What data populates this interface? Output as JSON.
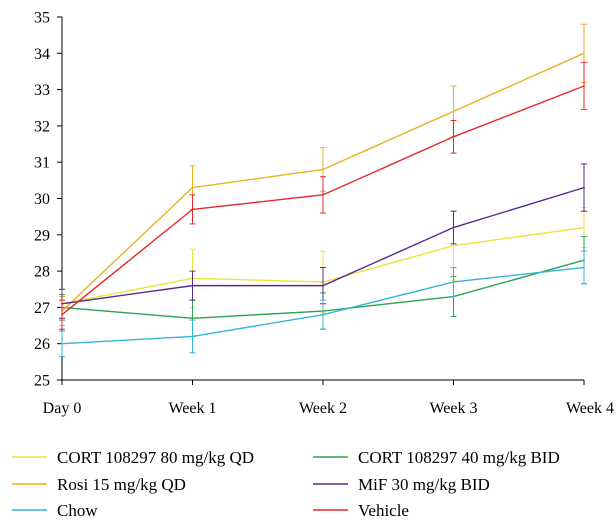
{
  "chart_data": {
    "type": "line",
    "title": "",
    "xlabel": "",
    "ylabel": "",
    "categories": [
      "Day 0",
      "Week 1",
      "Week 2",
      "Week 3",
      "Week 4"
    ],
    "ylim": [
      25,
      35
    ],
    "yticks": [
      25,
      26,
      27,
      28,
      29,
      30,
      31,
      32,
      33,
      34,
      35
    ],
    "grid": false,
    "legend_position": "bottom",
    "series": [
      {
        "name": "CORT 108297 80 mg/kg QD",
        "color": "#ebe43c",
        "values": [
          27.1,
          27.8,
          27.7,
          28.7,
          29.2
        ],
        "errors": [
          0.4,
          0.8,
          0.85,
          0.95,
          0.55
        ]
      },
      {
        "name": "CORT 108297 40 mg/kg BID",
        "color": "#2ea152",
        "values": [
          27.0,
          26.7,
          26.9,
          27.3,
          28.3
        ],
        "errors": [
          0.35,
          0.5,
          0.5,
          0.55,
          0.65
        ]
      },
      {
        "name": "Rosi 15 mg/kg QD",
        "color": "#e7b21f",
        "values": [
          26.9,
          30.3,
          30.8,
          32.4,
          34.0
        ],
        "errors": [
          0.4,
          0.6,
          0.6,
          0.7,
          0.8
        ]
      },
      {
        "name": "MiF 30 mg/kg BID",
        "color": "#5a2a8a",
        "values": [
          27.1,
          27.6,
          27.6,
          29.2,
          30.3
        ],
        "errors": [
          0.4,
          0.4,
          0.5,
          0.45,
          0.65
        ]
      },
      {
        "name": "Chow",
        "color": "#37b3d9",
        "values": [
          26.0,
          26.2,
          26.8,
          27.7,
          28.1
        ],
        "errors": [
          0.35,
          0.45,
          0.4,
          0.4,
          0.45
        ]
      },
      {
        "name": "Vehicle",
        "color": "#e3292c",
        "values": [
          26.8,
          29.7,
          30.1,
          31.7,
          33.1
        ],
        "errors": [
          0.4,
          0.4,
          0.5,
          0.45,
          0.65
        ]
      }
    ]
  }
}
